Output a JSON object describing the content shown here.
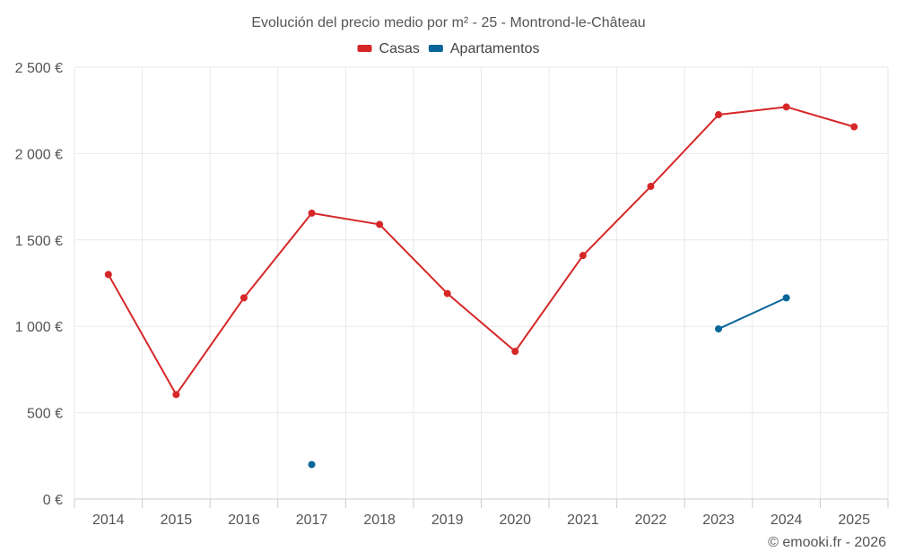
{
  "chart_data": {
    "type": "line",
    "title": "Evolución del precio medio por m² - 25 - Montrond-le-Château",
    "categories": [
      "2014",
      "2015",
      "2016",
      "2017",
      "2018",
      "2019",
      "2020",
      "2021",
      "2022",
      "2023",
      "2024",
      "2025"
    ],
    "ylim": [
      0,
      2500
    ],
    "yticks": [
      0,
      500,
      1000,
      1500,
      2000,
      2500
    ],
    "ytick_labels": [
      "0 €",
      "500 €",
      "1 000 €",
      "1 500 €",
      "2 000 €",
      "2 500 €"
    ],
    "grid": true,
    "legend_position": "top-center",
    "series": [
      {
        "name": "Casas",
        "color": "#d62728",
        "values": [
          1300,
          605,
          1165,
          1655,
          1590,
          1190,
          855,
          1410,
          1810,
          2225,
          2270,
          2155
        ]
      },
      {
        "name": "Apartamentos",
        "color": "#0a6599",
        "values": [
          null,
          null,
          null,
          200,
          null,
          null,
          null,
          null,
          null,
          985,
          1165,
          null
        ]
      }
    ],
    "credit": "© emooki.fr - 2026"
  }
}
